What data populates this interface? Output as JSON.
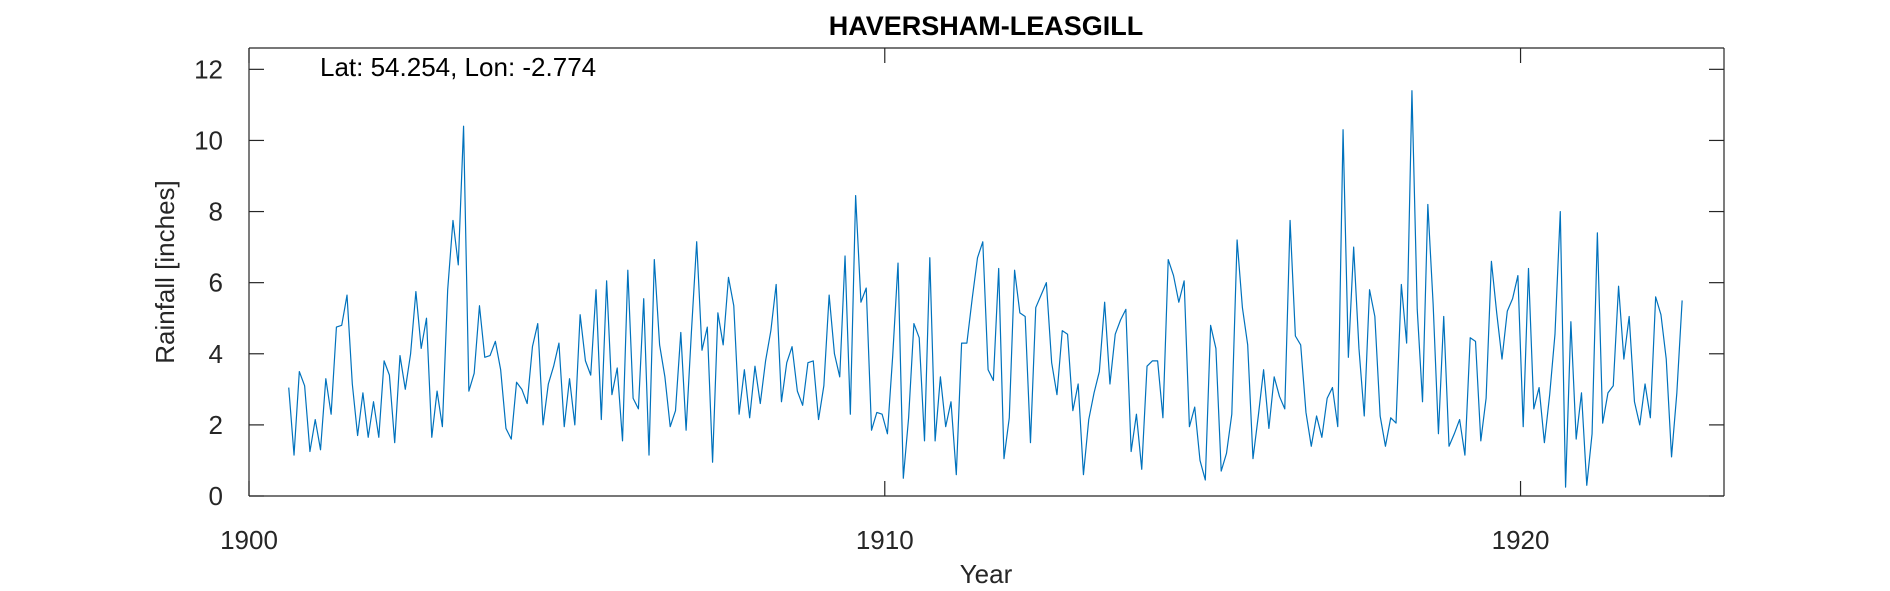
{
  "chart_data": {
    "type": "line",
    "title": "HAVERSHAM-LEASGILL",
    "xlabel": "Year",
    "ylabel": "Rainfall [inches]",
    "annotation": "Lat: 54.254, Lon: -2.774",
    "xlim": [
      1900,
      1923.2
    ],
    "ylim": [
      0,
      12.6
    ],
    "xticks": [
      1900,
      1910,
      1920
    ],
    "yticks": [
      0,
      2,
      4,
      6,
      8,
      10,
      12
    ],
    "grid": false,
    "line_color": "#0072BD",
    "series": [
      {
        "x_start": 1900.625,
        "x_step": 0.083333,
        "values": [
          3.05,
          1.15,
          3.5,
          3.1,
          1.25,
          2.15,
          1.3,
          3.3,
          2.3,
          4.75,
          4.8,
          5.65,
          3.15,
          1.7,
          2.9,
          1.65,
          2.65,
          1.65,
          3.8,
          3.4,
          1.5,
          3.95,
          3.0,
          4.0,
          5.75,
          4.15,
          5.0,
          1.65,
          2.95,
          1.95,
          5.8,
          7.75,
          6.5,
          10.4,
          2.95,
          3.45,
          5.35,
          3.9,
          3.95,
          4.35,
          3.55,
          1.9,
          1.6,
          3.2,
          3.0,
          2.6,
          4.2,
          4.85,
          2.0,
          3.15,
          3.65,
          4.3,
          1.95,
          3.3,
          2.0,
          5.1,
          3.8,
          3.4,
          5.8,
          2.15,
          6.05,
          2.85,
          3.6,
          1.55,
          6.35,
          2.75,
          2.45,
          5.55,
          1.15,
          6.65,
          4.25,
          3.35,
          1.95,
          2.4,
          4.6,
          1.85,
          4.6,
          7.15,
          4.1,
          4.75,
          0.95,
          5.15,
          4.25,
          6.15,
          5.35,
          2.3,
          3.55,
          2.2,
          3.65,
          2.6,
          3.8,
          4.65,
          5.95,
          2.65,
          3.75,
          4.2,
          2.95,
          2.55,
          3.75,
          3.8,
          2.15,
          3.1,
          5.65,
          4.0,
          3.35,
          6.75,
          2.3,
          8.45,
          5.45,
          5.85,
          1.85,
          2.35,
          2.3,
          1.75,
          3.95,
          6.55,
          0.5,
          2.2,
          4.85,
          4.45,
          1.55,
          6.7,
          1.55,
          3.35,
          1.95,
          2.65,
          0.6,
          4.3,
          4.3,
          5.55,
          6.7,
          7.15,
          3.55,
          3.25,
          6.4,
          1.05,
          2.2,
          6.35,
          5.15,
          5.05,
          1.5,
          5.3,
          5.65,
          6.0,
          3.75,
          2.85,
          4.65,
          4.55,
          2.4,
          3.15,
          0.6,
          2.15,
          2.9,
          3.5,
          5.45,
          3.15,
          4.55,
          4.95,
          5.25,
          1.25,
          2.3,
          0.75,
          3.65,
          3.8,
          3.8,
          2.2,
          6.65,
          6.2,
          5.45,
          6.05,
          1.95,
          2.5,
          1.0,
          0.45,
          4.8,
          4.15,
          0.7,
          1.2,
          2.3,
          7.2,
          5.3,
          4.25,
          1.05,
          2.25,
          3.55,
          1.9,
          3.35,
          2.8,
          2.45,
          7.75,
          4.5,
          4.25,
          2.35,
          1.4,
          2.25,
          1.65,
          2.75,
          3.05,
          1.95,
          10.3,
          3.9,
          7.0,
          4.15,
          2.25,
          5.8,
          5.05,
          2.25,
          1.4,
          2.2,
          2.05,
          5.95,
          4.3,
          11.4,
          5.25,
          2.65,
          8.2,
          5.4,
          1.75,
          5.05,
          1.4,
          1.75,
          2.15,
          1.15,
          4.45,
          4.35,
          1.55,
          2.75,
          6.6,
          5.15,
          3.85,
          5.2,
          5.55,
          6.2,
          1.95,
          6.4,
          2.45,
          3.05,
          1.5,
          2.85,
          4.55,
          8.0,
          0.25,
          4.9,
          1.6,
          2.9,
          0.3,
          1.75,
          7.4,
          2.05,
          2.9,
          3.1,
          5.9,
          3.85,
          5.05,
          2.65,
          2.0,
          3.15,
          2.2,
          5.6,
          5.1,
          3.85,
          1.1,
          2.9,
          5.5
        ]
      }
    ]
  }
}
